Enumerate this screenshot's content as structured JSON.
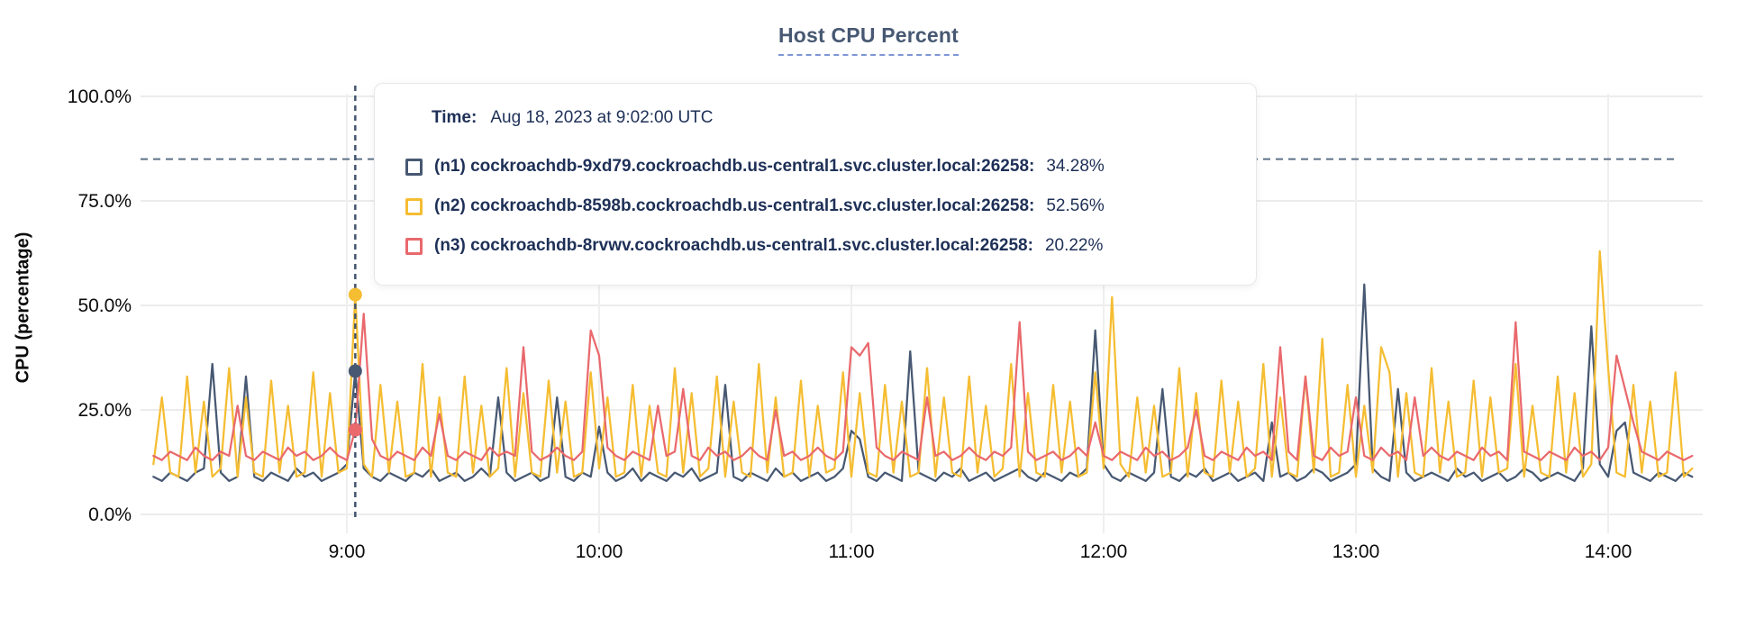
{
  "page": {
    "title": "Host CPU Percent"
  },
  "y_axis": {
    "title": "CPU (percentage)",
    "tick_labels": [
      "100.0%",
      "75.0%",
      "50.0%",
      "25.0%",
      "0.0%"
    ],
    "tick_values": [
      100,
      75,
      50,
      25,
      0
    ]
  },
  "x_axis": {
    "tick_labels": [
      "9:00",
      "10:00",
      "11:00",
      "12:00",
      "13:00",
      "14:00"
    ],
    "tick_minutes": [
      540,
      600,
      660,
      720,
      780,
      840
    ]
  },
  "tooltip": {
    "time_label": "Time:",
    "time_value": "Aug 18, 2023 at 9:02:00 UTC",
    "rows": [
      {
        "label": "(n1) cockroachdb-9xd79.cockroachdb.us-central1.svc.cluster.local:26258:",
        "value": "34.28%",
        "color": "#475872"
      },
      {
        "label": "(n2) cockroachdb-8598b.cockroachdb.us-central1.svc.cluster.local:26258:",
        "value": "52.56%",
        "color": "#F5BD32"
      },
      {
        "label": "(n3) cockroachdb-8rvwv.cockroachdb.us-central1.svc.cluster.local:26258:",
        "value": "20.22%",
        "color": "#E9696D"
      }
    ]
  },
  "chart_data": {
    "type": "line",
    "title": "Host CPU Percent",
    "xlabel": "",
    "ylabel": "CPU (percentage)",
    "y_range": [
      0,
      100
    ],
    "grid": true,
    "threshold_percent": 85,
    "hover": {
      "time_minutes": 542,
      "time_text": "Aug 18, 2023 at 9:02:00 UTC"
    },
    "x_start_minute": 494,
    "x_step_minutes": 2,
    "series": [
      {
        "name": "(n1) cockroachdb-9xd79.cockroachdb.us-central1.svc.cluster.local:26258",
        "color": "#475872",
        "hover_value": 34.28,
        "values": [
          9,
          8,
          10,
          9,
          8,
          10,
          11,
          36,
          10,
          8,
          9,
          33,
          9,
          8,
          10,
          9,
          8,
          11,
          9,
          10,
          8,
          9,
          10,
          12,
          34.28,
          11,
          9,
          8,
          10,
          9,
          8,
          10,
          9,
          11,
          8,
          9,
          10,
          8,
          9,
          11,
          9,
          28,
          10,
          8,
          9,
          10,
          8,
          9,
          28,
          9,
          8,
          10,
          9,
          21,
          10,
          8,
          9,
          11,
          8,
          10,
          9,
          8,
          10,
          9,
          11,
          8,
          9,
          10,
          31,
          9,
          8,
          10,
          9,
          8,
          11,
          9,
          10,
          8,
          9,
          10,
          8,
          9,
          11,
          20,
          18,
          9,
          8,
          10,
          9,
          8,
          39,
          10,
          9,
          8,
          10,
          9,
          11,
          8,
          9,
          10,
          8,
          9,
          10,
          11,
          9,
          8,
          10,
          9,
          8,
          10,
          9,
          11,
          44,
          12,
          9,
          8,
          10,
          9,
          8,
          10,
          30,
          9,
          8,
          10,
          9,
          11,
          8,
          9,
          10,
          8,
          9,
          10,
          8,
          22,
          9,
          10,
          8,
          9,
          11,
          10,
          8,
          9,
          10,
          12,
          55,
          11,
          9,
          8,
          30,
          10,
          8,
          9,
          10,
          9,
          8,
          11,
          9,
          10,
          8,
          9,
          10,
          8,
          9,
          11,
          10,
          8,
          9,
          10,
          9,
          8,
          11,
          45,
          12,
          9,
          20,
          22,
          10,
          9,
          8,
          10,
          9,
          8,
          10,
          9
        ]
      },
      {
        "name": "(n2) cockroachdb-8598b.cockroachdb.us-central1.svc.cluster.local:26258",
        "color": "#F5BD32",
        "hover_value": 52.56,
        "values": [
          12,
          28,
          10,
          9,
          33,
          10,
          27,
          9,
          11,
          35,
          9,
          28,
          10,
          9,
          32,
          10,
          26,
          9,
          10,
          34,
          9,
          29,
          10,
          11,
          52.56,
          12,
          9,
          31,
          10,
          27,
          9,
          10,
          36,
          9,
          28,
          10,
          9,
          33,
          10,
          26,
          9,
          11,
          35,
          9,
          29,
          10,
          9,
          32,
          10,
          27,
          9,
          10,
          34,
          11,
          28,
          9,
          10,
          31,
          9,
          26,
          10,
          9,
          35,
          10,
          29,
          9,
          11,
          33,
          9,
          27,
          10,
          9,
          36,
          10,
          28,
          9,
          10,
          32,
          9,
          26,
          10,
          11,
          34,
          9,
          29,
          10,
          9,
          31,
          10,
          27,
          9,
          10,
          35,
          9,
          28,
          10,
          9,
          33,
          10,
          26,
          9,
          11,
          36,
          9,
          29,
          10,
          9,
          31,
          10,
          27,
          9,
          10,
          34,
          11,
          52,
          12,
          9,
          28,
          10,
          26,
          9,
          10,
          35,
          9,
          29,
          10,
          9,
          32,
          10,
          27,
          9,
          11,
          36,
          9,
          28,
          10,
          9,
          33,
          10,
          42,
          9,
          10,
          31,
          9,
          26,
          10,
          40,
          34,
          9,
          29,
          10,
          9,
          35,
          10,
          27,
          9,
          10,
          32,
          9,
          28,
          10,
          11,
          36,
          9,
          26,
          10,
          9,
          33,
          10,
          29,
          9,
          12,
          63,
          35,
          10,
          9,
          31,
          10,
          27,
          9,
          10,
          34,
          9,
          11
        ]
      },
      {
        "name": "(n3) cockroachdb-8rvwv.cockroachdb.us-central1.svc.cluster.local:26258",
        "color": "#E9696D",
        "hover_value": 20.22,
        "values": [
          14,
          13,
          15,
          14,
          13,
          16,
          14,
          13,
          15,
          14,
          26,
          14,
          13,
          15,
          14,
          13,
          16,
          14,
          15,
          13,
          14,
          16,
          14,
          13,
          20.22,
          48,
          18,
          14,
          13,
          15,
          14,
          13,
          16,
          14,
          24,
          14,
          13,
          15,
          14,
          13,
          16,
          14,
          15,
          14,
          40,
          15,
          13,
          14,
          16,
          14,
          13,
          15,
          44,
          38,
          16,
          14,
          13,
          15,
          14,
          13,
          26,
          14,
          15,
          30,
          14,
          13,
          16,
          14,
          15,
          13,
          14,
          16,
          14,
          13,
          25,
          14,
          15,
          13,
          14,
          16,
          14,
          13,
          15,
          40,
          38,
          41,
          16,
          14,
          13,
          15,
          14,
          13,
          28,
          14,
          15,
          13,
          14,
          16,
          14,
          13,
          15,
          14,
          16,
          46,
          15,
          13,
          14,
          15,
          13,
          14,
          16,
          14,
          22,
          14,
          13,
          15,
          14,
          13,
          16,
          14,
          15,
          13,
          14,
          16,
          25,
          14,
          13,
          15,
          14,
          13,
          16,
          14,
          15,
          13,
          40,
          15,
          13,
          33,
          14,
          13,
          16,
          14,
          15,
          28,
          14,
          13,
          16,
          14,
          15,
          13,
          28,
          14,
          16,
          14,
          13,
          15,
          14,
          13,
          16,
          14,
          15,
          13,
          46,
          15,
          14,
          13,
          15,
          14,
          13,
          16,
          14,
          15,
          13,
          16,
          38,
          30,
          22,
          15,
          14,
          13,
          15,
          14,
          13,
          14
        ]
      }
    ]
  }
}
